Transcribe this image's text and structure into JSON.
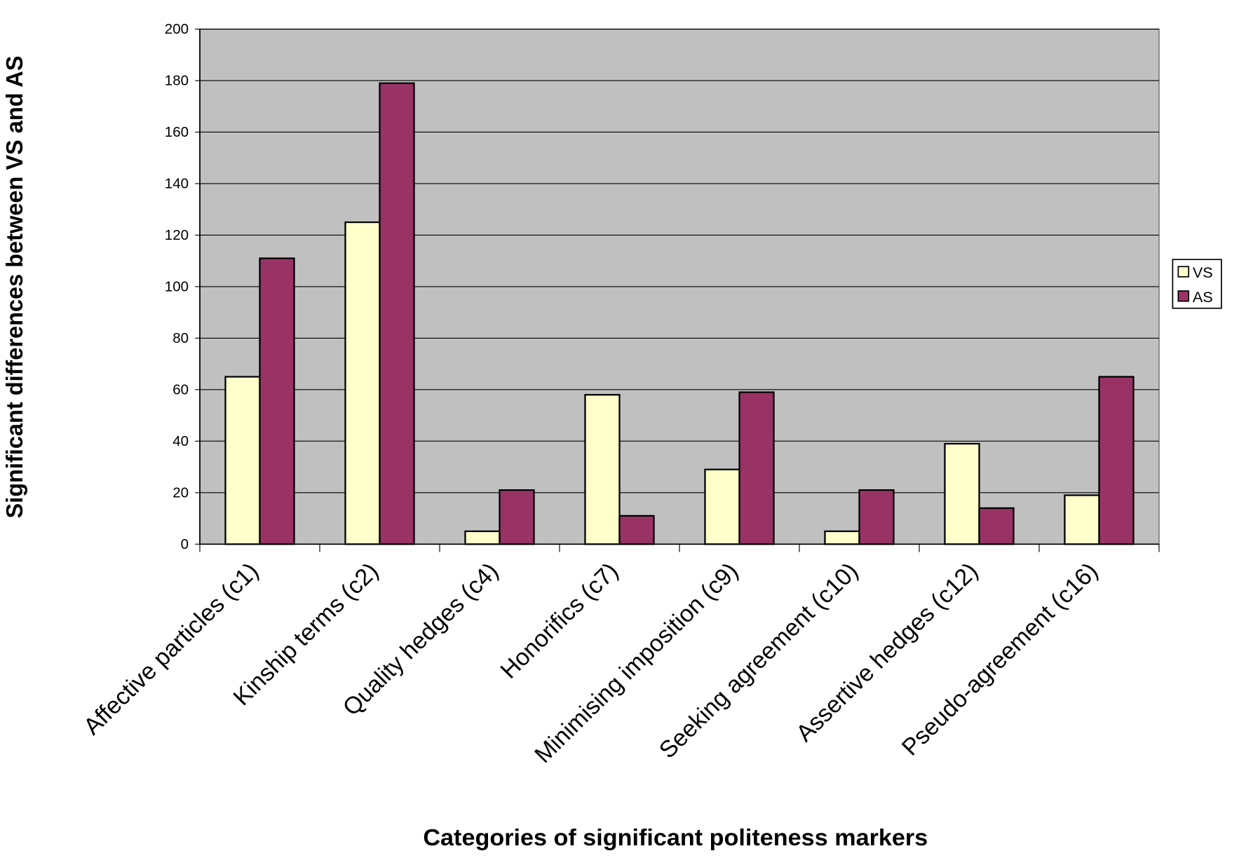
{
  "chart_data": {
    "type": "bar",
    "x_label": "Categories of significant politeness markers",
    "y_label": "Significant differences between VS and AS",
    "categories": [
      "Affective particles (c1)",
      "Kinship terms (c2)",
      "Quality hedges (c4)",
      "Honorifics (c7)",
      "Minimising imposition (c9)",
      "Seeking agreement (c10)",
      "Assertive hedges (c12)",
      "Pseudo-agreement (c16)"
    ],
    "series": [
      {
        "name": "VS",
        "color": "#ffffcc",
        "values": [
          65,
          125,
          5,
          58,
          29,
          5,
          39,
          19
        ]
      },
      {
        "name": "AS",
        "color": "#993366",
        "values": [
          111,
          179,
          21,
          11,
          59,
          21,
          14,
          65
        ]
      }
    ],
    "ylim": [
      0,
      200
    ],
    "yticks": [
      0,
      20,
      40,
      60,
      80,
      100,
      120,
      140,
      160,
      180,
      200
    ],
    "grid": true,
    "legend": "right",
    "background": "#c0c0c0"
  }
}
